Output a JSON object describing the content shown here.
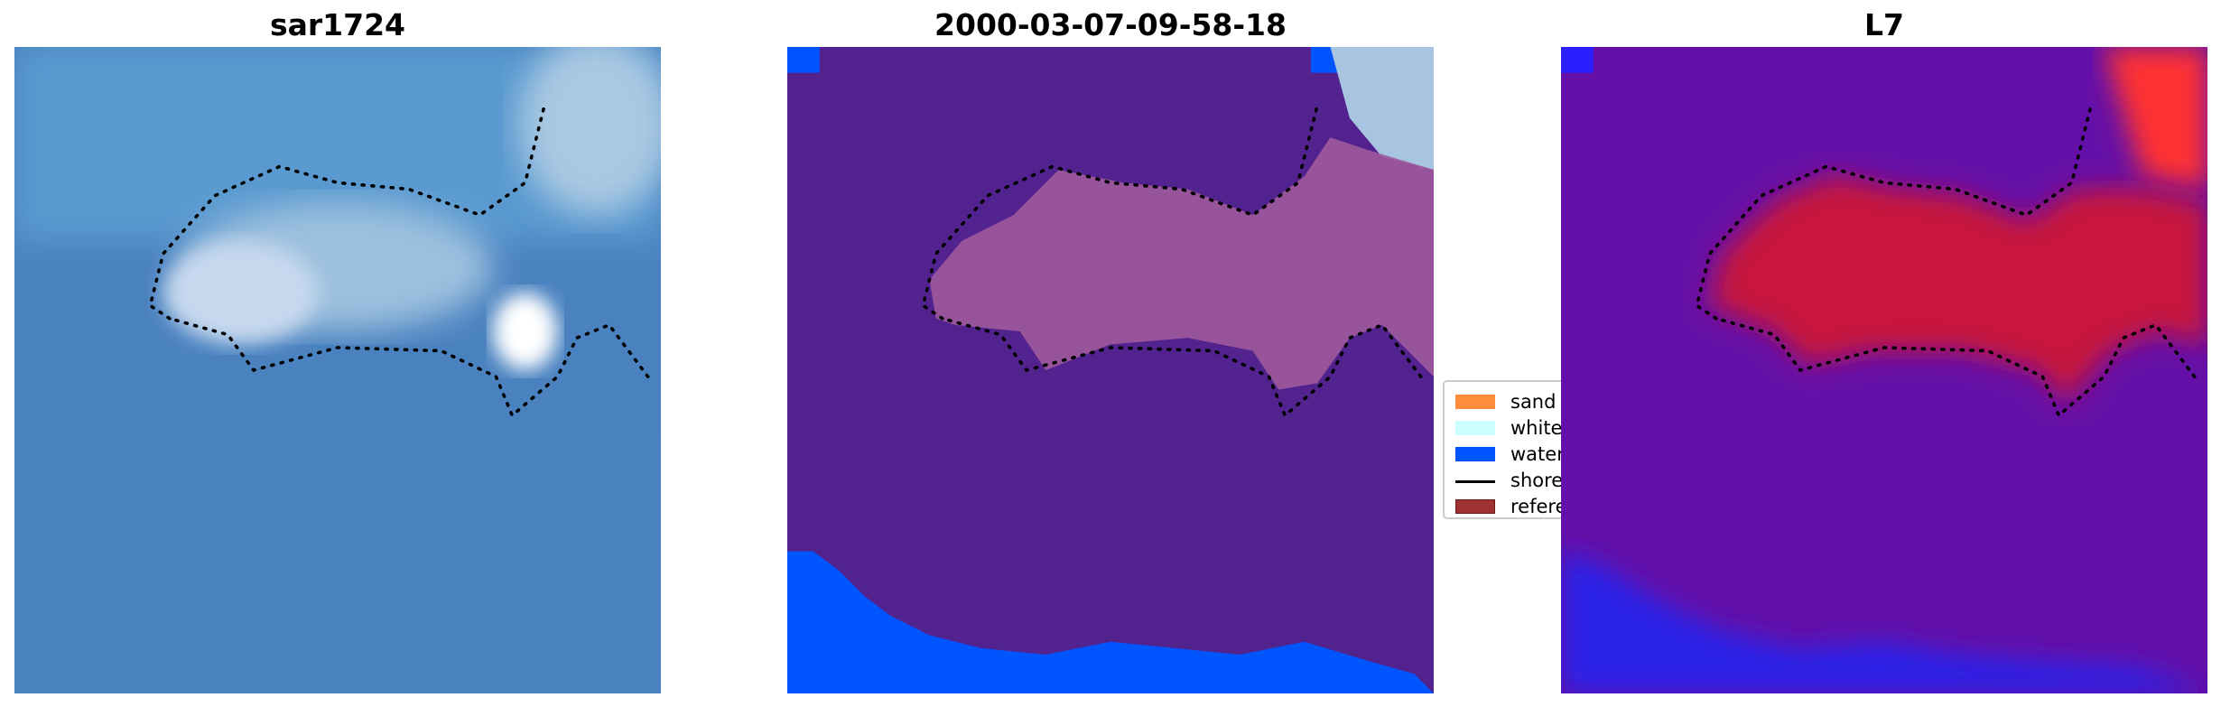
{
  "panels": [
    {
      "title": "sar1724"
    },
    {
      "title": "2000-03-07-09-58-18"
    },
    {
      "title": "L7"
    }
  ],
  "legend": {
    "items": [
      {
        "label": "sand",
        "color": "#ff8c3a",
        "kind": "patch"
      },
      {
        "label": "whitew",
        "color": "#ccffff",
        "kind": "patch"
      },
      {
        "label": "water",
        "color": "#0055ff",
        "kind": "patch"
      },
      {
        "label": "shoreli",
        "color": "#000000",
        "kind": "line"
      },
      {
        "label": "referer",
        "color": "#9e3232",
        "kind": "patch"
      }
    ]
  },
  "colors": {
    "shoreline": "#000000",
    "class_background": "#52238f",
    "water": "#0055ff"
  }
}
